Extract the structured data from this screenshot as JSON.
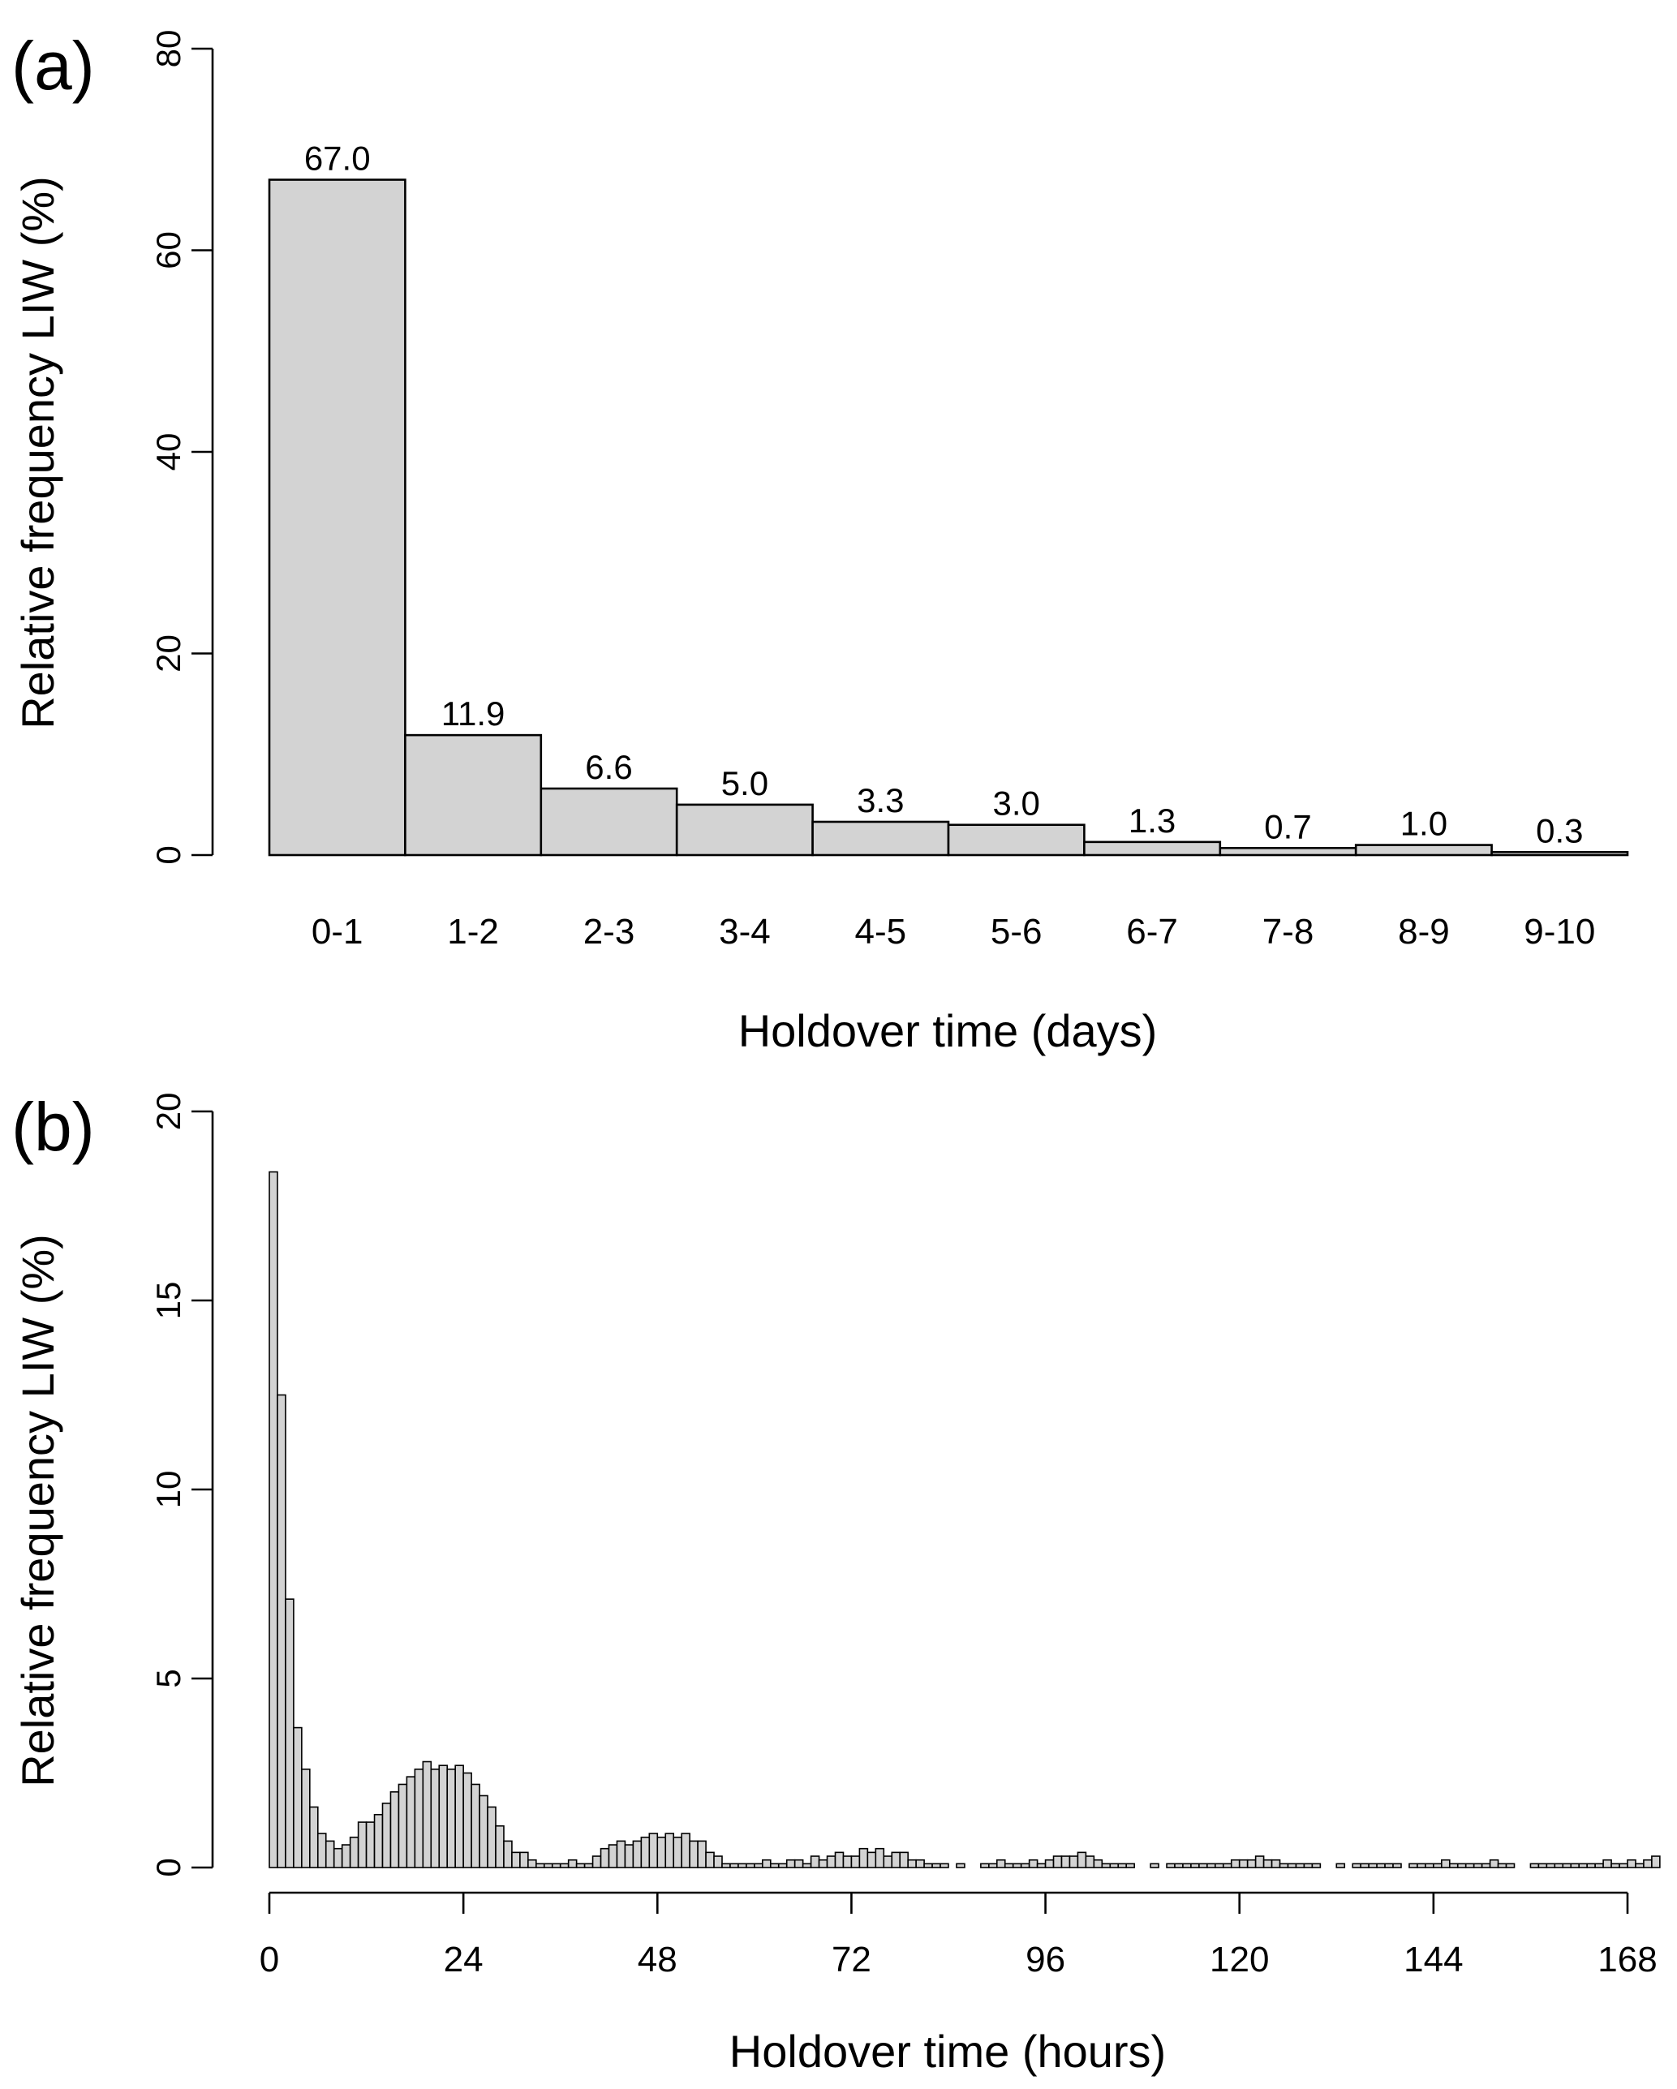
{
  "chart_data": [
    {
      "panel_label": "(a)",
      "type": "bar",
      "title": "",
      "xlabel": "Holdover time (days)",
      "ylabel": "Relative frequency LIW (%)",
      "ylim": [
        0,
        80
      ],
      "yticks": [
        "0",
        "20",
        "40",
        "60",
        "80"
      ],
      "categories": [
        "0-1",
        "1-2",
        "2-3",
        "3-4",
        "4-5",
        "5-6",
        "6-7",
        "7-8",
        "8-9",
        "9-10"
      ],
      "values": [
        67.0,
        11.9,
        6.6,
        5.0,
        3.3,
        3.0,
        1.3,
        0.7,
        1.0,
        0.3
      ],
      "value_labels": [
        "67.0",
        "11.9",
        "6.6",
        "5.0",
        "3.3",
        "3.0",
        "1.3",
        "0.7",
        "1.0",
        "0.3"
      ],
      "bar_color": "#d3d3d3",
      "grid": false,
      "legend": "none"
    },
    {
      "panel_label": "(b)",
      "type": "bar",
      "title": "",
      "xlabel": "Holdover time (hours)",
      "ylabel": "Relative frequency LIW (%)",
      "xlim": [
        0,
        168
      ],
      "ylim": [
        0,
        20
      ],
      "xticks": [
        "0",
        "24",
        "48",
        "72",
        "96",
        "120",
        "144",
        "168"
      ],
      "yticks": [
        "0",
        "5",
        "10",
        "15",
        "20"
      ],
      "bin_width_hours": 1,
      "values": [
        18.4,
        12.5,
        7.1,
        3.7,
        2.6,
        1.6,
        0.9,
        0.7,
        0.5,
        0.6,
        0.8,
        1.2,
        1.2,
        1.4,
        1.7,
        2.0,
        2.2,
        2.4,
        2.6,
        2.8,
        2.6,
        2.7,
        2.6,
        2.7,
        2.5,
        2.2,
        1.9,
        1.6,
        1.1,
        0.7,
        0.4,
        0.4,
        0.2,
        0.1,
        0.1,
        0.1,
        0.1,
        0.2,
        0.1,
        0.1,
        0.3,
        0.5,
        0.6,
        0.7,
        0.6,
        0.7,
        0.8,
        0.9,
        0.8,
        0.9,
        0.8,
        0.9,
        0.7,
        0.7,
        0.4,
        0.3,
        0.1,
        0.1,
        0.1,
        0.1,
        0.1,
        0.2,
        0.1,
        0.1,
        0.2,
        0.2,
        0.1,
        0.3,
        0.2,
        0.3,
        0.4,
        0.3,
        0.3,
        0.5,
        0.4,
        0.5,
        0.3,
        0.4,
        0.4,
        0.2,
        0.2,
        0.1,
        0.1,
        0.1,
        0.0,
        0.1,
        0.0,
        0.0,
        0.1,
        0.1,
        0.2,
        0.1,
        0.1,
        0.1,
        0.2,
        0.1,
        0.2,
        0.3,
        0.3,
        0.3,
        0.4,
        0.3,
        0.2,
        0.1,
        0.1,
        0.1,
        0.1,
        0.0,
        0.0,
        0.1,
        0.0,
        0.1,
        0.1,
        0.1,
        0.1,
        0.1,
        0.1,
        0.1,
        0.1,
        0.2,
        0.2,
        0.2,
        0.3,
        0.2,
        0.2,
        0.1,
        0.1,
        0.1,
        0.1,
        0.1,
        0.0,
        0.0,
        0.1,
        0.0,
        0.1,
        0.1,
        0.1,
        0.1,
        0.1,
        0.1,
        0.0,
        0.1,
        0.1,
        0.1,
        0.1,
        0.2,
        0.1,
        0.1,
        0.1,
        0.1,
        0.1,
        0.2,
        0.1,
        0.1,
        0.0,
        0.0,
        0.1,
        0.1,
        0.1,
        0.1,
        0.1,
        0.1,
        0.1,
        0.1,
        0.1,
        0.2,
        0.1,
        0.1,
        0.2,
        0.1,
        0.2,
        0.3
      ],
      "bar_color": "#d3d3d3",
      "grid": false,
      "legend": "none"
    }
  ]
}
